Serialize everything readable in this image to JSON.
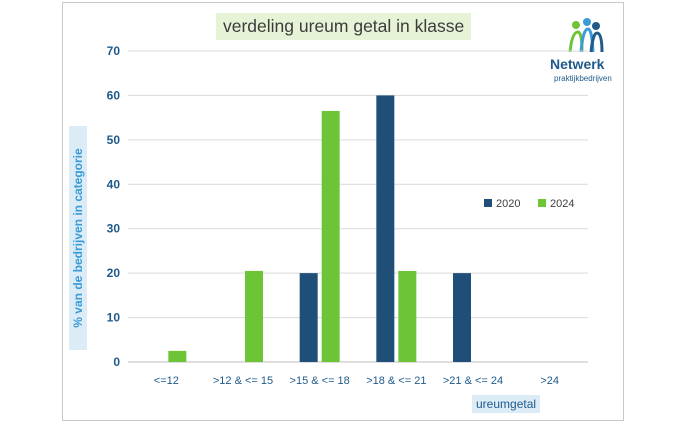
{
  "chart_data": {
    "type": "bar",
    "title": "verdeling ureum getal in klasse",
    "xlabel": "ureumgetal",
    "ylabel": "% van de bedrijven in categorie",
    "categories": [
      "<=12",
      ">12 & <= 15",
      ">15 & <= 18",
      ">18 & <= 21",
      ">21 & <= 24",
      ">24"
    ],
    "series": [
      {
        "name": "2020",
        "color": "#1f4e79",
        "values": [
          0,
          0,
          20,
          60,
          20,
          0
        ]
      },
      {
        "name": "2024",
        "color": "#6cc436",
        "values": [
          2.5,
          20.5,
          56.5,
          20.5,
          0,
          0
        ]
      }
    ],
    "ylim": [
      0,
      70
    ],
    "yticks": [
      0,
      10,
      20,
      30,
      40,
      50,
      60,
      70
    ],
    "grid": true,
    "legend_position": "right"
  },
  "logo": {
    "word": "Netwerk",
    "sub": "praktijkbedrijven"
  }
}
